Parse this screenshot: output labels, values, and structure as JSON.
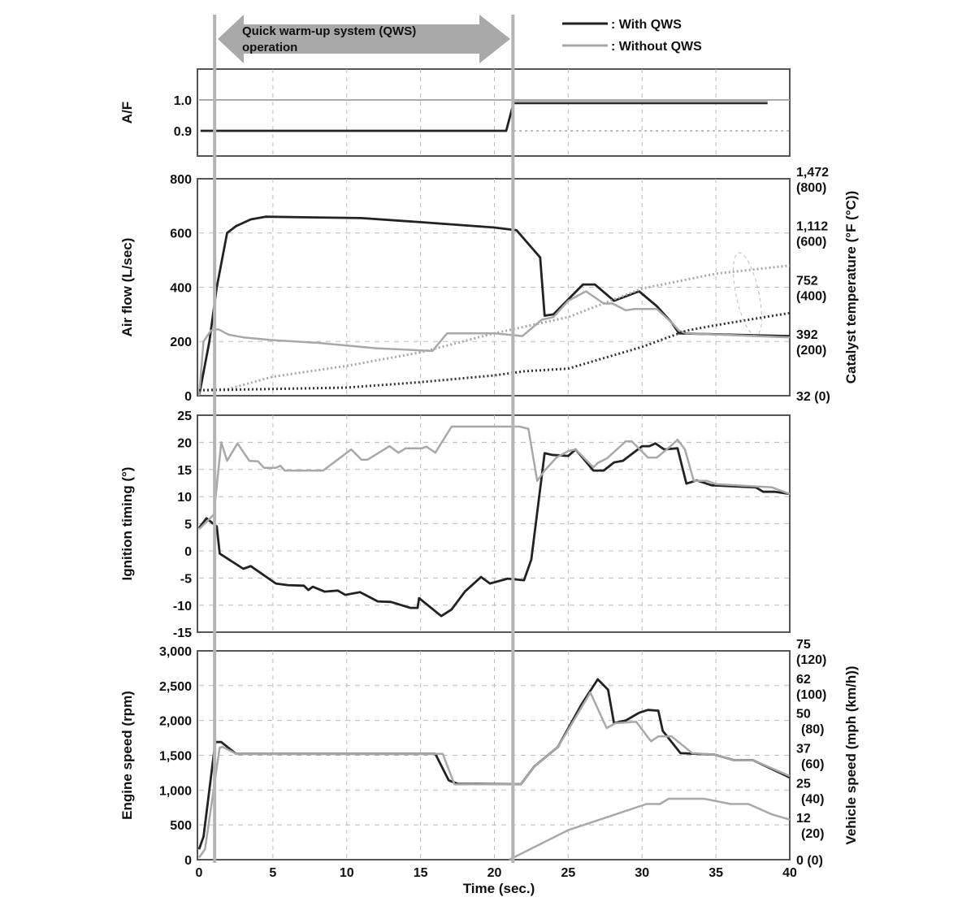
{
  "annotation": {
    "line1": "Quick warm-up system (QWS)",
    "line2": "operation"
  },
  "legend": [
    {
      "label": ": With QWS",
      "color": "#222222"
    },
    {
      "label": ": Without QWS",
      "color": "#a8a8a8"
    }
  ],
  "colors": {
    "with_qws": "#222222",
    "without_qws": "#a8a8a8",
    "catalyst_light": "#a8a8a8",
    "catalyst_dark": "#333333",
    "marker_band": "#b4b4b4"
  },
  "chart_data": [
    {
      "type": "line",
      "ylabel": "A/F",
      "yticks": [
        "0.9",
        "1.0"
      ],
      "ytick_values": [
        0.9,
        1.0
      ],
      "ylim": [
        0.87,
        1.1
      ],
      "xlim": [
        0,
        40
      ],
      "qws_operation_seconds": [
        1,
        21.2
      ],
      "series": [
        {
          "name": "With QWS",
          "x": [
            0.1,
            20.8,
            21.3,
            38.5
          ],
          "y": [
            0.9,
            0.9,
            0.99,
            0.99
          ]
        },
        {
          "name": "Without QWS",
          "x": [
            21.3,
            38.5
          ],
          "y": [
            0.995,
            0.995
          ]
        }
      ]
    },
    {
      "type": "line",
      "ylabel": "Air flow (L/sec)",
      "y2label": "Catalyst temperature (°F (°C))",
      "yticks": [
        "0",
        "200",
        "400",
        "600",
        "800"
      ],
      "ytick_values": [
        0,
        200,
        400,
        600,
        800
      ],
      "y2ticks": [
        {
          "f": "32 (0)",
          "c": "",
          "value": 0
        },
        {
          "f": "392",
          "c": "(200)",
          "value": 200
        },
        {
          "f": "752",
          "c": "(400)",
          "value": 400
        },
        {
          "f": "1,112",
          "c": "(600)",
          "value": 600
        },
        {
          "f": "1,472",
          "c": "(800)",
          "value": 800
        }
      ],
      "ylim": [
        0,
        800
      ],
      "xlim": [
        0,
        40
      ],
      "grid": true,
      "series": [
        {
          "name": "With QWS",
          "x": [
            0,
            0.7,
            1.2,
            1.9,
            2.5,
            3.5,
            4.5,
            11,
            15,
            20,
            21.5,
            23.1,
            23.4,
            24,
            26,
            26.8,
            28.1,
            29.8,
            31,
            32,
            32.5,
            36,
            40
          ],
          "y": [
            0,
            200,
            400,
            600,
            625,
            650,
            660,
            655,
            640,
            620,
            610,
            510,
            295,
            300,
            410,
            410,
            350,
            385,
            330,
            270,
            230,
            225,
            220
          ]
        },
        {
          "name": "Without QWS",
          "x": [
            0,
            0.3,
            0.8,
            1.3,
            2,
            3,
            5,
            8,
            10,
            12,
            15.8,
            16.8,
            20,
            21.9,
            23.2,
            24,
            25,
            26.2,
            27.4,
            28,
            28.9,
            29.5,
            31,
            32,
            32.5,
            33,
            40
          ],
          "y": [
            0,
            200,
            240,
            245,
            225,
            215,
            205,
            195,
            185,
            175,
            165,
            230,
            230,
            220,
            280,
            290,
            350,
            385,
            340,
            340,
            315,
            320,
            320,
            270,
            240,
            230,
            215
          ]
        },
        {
          "style": "dotted-light",
          "x": [
            0,
            2,
            5,
            10,
            15,
            20,
            25,
            30,
            35,
            40
          ],
          "y": [
            20,
            25,
            70,
            110,
            160,
            230,
            290,
            395,
            450,
            480
          ]
        },
        {
          "style": "dotted-dark",
          "x": [
            0,
            5,
            10,
            15,
            20,
            22,
            25,
            30,
            33,
            35,
            40
          ],
          "y": [
            20,
            25,
            30,
            50,
            75,
            90,
            100,
            180,
            240,
            260,
            305
          ]
        }
      ]
    },
    {
      "type": "line",
      "ylabel": "Ignition timing (°)",
      "yticks": [
        "-15",
        "-10",
        "-5",
        "0",
        "5",
        "10",
        "15",
        "20",
        "25"
      ],
      "ytick_values": [
        -15,
        -10,
        -5,
        0,
        5,
        10,
        15,
        20,
        25
      ],
      "ylim": [
        -15,
        25
      ],
      "xlim": [
        0,
        40
      ],
      "grid": true,
      "series": [
        {
          "name": "With QWS",
          "x": [
            0,
            0.5,
            1.2,
            1.4,
            3.0,
            3.5,
            5.2,
            6,
            7.1,
            7.4,
            7.7,
            8.5,
            9.4,
            9.9,
            10.9,
            12.1,
            13,
            14.3,
            14.8,
            14.9,
            16.4,
            17.1,
            18,
            19.1,
            19.7,
            20.9,
            22,
            22.5,
            23.4,
            23.9,
            25,
            25.5,
            26.7,
            27.4,
            28.1,
            28.7,
            30,
            30.5,
            30.9,
            31.5,
            32.4,
            33,
            33.7,
            34.7,
            37.7,
            38.2,
            39,
            40
          ],
          "y": [
            4.2,
            6,
            4.5,
            -0.5,
            -3.3,
            -2.8,
            -6,
            -6.3,
            -6.4,
            -7.2,
            -6.6,
            -7.5,
            -7.3,
            -8.1,
            -7.6,
            -9.3,
            -9.4,
            -10.5,
            -10.5,
            -8.7,
            -12,
            -10.8,
            -7.5,
            -4.8,
            -6,
            -5.1,
            -5.4,
            -1.6,
            18,
            17.7,
            17.5,
            18.7,
            14.8,
            14.8,
            16.3,
            16.6,
            19.3,
            19.3,
            19.8,
            18.7,
            18.9,
            12.4,
            13,
            12.1,
            11.7,
            10.9,
            10.9,
            10.5
          ]
        },
        {
          "name": "Without QWS",
          "x": [
            0,
            1,
            1.5,
            1.9,
            2.6,
            3.4,
            4,
            4.4,
            5.2,
            5.5,
            5.8,
            8.4,
            10.3,
            11,
            11.4,
            12.9,
            13.5,
            14,
            15.1,
            15.4,
            16,
            17.1,
            21.7,
            22.3,
            22.9,
            23.4,
            24.2,
            25,
            25.5,
            26.7,
            27,
            27.6,
            28.9,
            29.3,
            30.4,
            31,
            31.9,
            32.4,
            32.9,
            33.5,
            34.4,
            35,
            38.8,
            40
          ],
          "y": [
            4,
            6.7,
            20,
            16.6,
            19.8,
            16.6,
            16.5,
            15.3,
            15.3,
            15.7,
            14.8,
            14.8,
            18.7,
            16.8,
            16.8,
            19.3,
            18.1,
            18.9,
            18.9,
            19.2,
            18.1,
            22.9,
            22.9,
            22.5,
            12.9,
            14.8,
            17.2,
            18.4,
            18.7,
            15.4,
            16.2,
            17,
            20.2,
            20.2,
            17.2,
            17.2,
            19.2,
            20.5,
            18.7,
            12.9,
            12.9,
            12.3,
            11.7,
            10.5
          ]
        }
      ]
    },
    {
      "type": "line",
      "ylabel": "Engine speed (rpm)",
      "y2label": "Vehicle speed (mph (km/h))",
      "xlabel": "Time (sec.)",
      "xticks": [
        "0",
        "5",
        "10",
        "15",
        "20",
        "25",
        "30",
        "35",
        "40"
      ],
      "yticks": [
        "0",
        "500",
        "1,000",
        "1,500",
        "2,000",
        "2,500",
        "3,000"
      ],
      "ytick_values": [
        0,
        500,
        1000,
        1500,
        2000,
        2500,
        3000
      ],
      "y2ticks": [
        {
          "f": "0 (0)",
          "c": "",
          "value": 0
        },
        {
          "f": "12",
          "c": "(20)",
          "value": 20
        },
        {
          "f": "25",
          "c": "(40)",
          "value": 40
        },
        {
          "f": "37",
          "c": "(60)",
          "value": 60
        },
        {
          "f": "50",
          "c": "(80)",
          "value": 80
        },
        {
          "f": "62",
          "c": "(100)",
          "value": 100
        },
        {
          "f": "75",
          "c": "(120)",
          "value": 120
        }
      ],
      "ylim": [
        0,
        3000
      ],
      "y2lim_kmh": [
        0,
        120
      ],
      "xlim": [
        0,
        40
      ],
      "grid": true,
      "series": [
        {
          "name": "With QWS",
          "x": [
            0,
            0.3,
            1.1,
            1.5,
            2.5,
            16,
            16.9,
            17.5,
            21.8,
            22.7,
            24.3,
            25.9,
            27,
            27.7,
            28.1,
            28.9,
            29.8,
            30.4,
            31.1,
            31.4,
            32.6,
            34.9,
            36.2,
            37.5,
            40
          ],
          "y": [
            150,
            330,
            1690,
            1690,
            1520,
            1520,
            1140,
            1090,
            1085,
            1340,
            1620,
            2230,
            2590,
            2440,
            1960,
            2000,
            2110,
            2150,
            2140,
            1850,
            1530,
            1510,
            1430,
            1430,
            1180
          ]
        },
        {
          "name": "Without QWS",
          "x": [
            0,
            0.4,
            1.4,
            1.6,
            2.5,
            16.5,
            17.3,
            21.8,
            22.7,
            24.3,
            26.5,
            27.6,
            28.2,
            29.6,
            30.6,
            31.1,
            32,
            33.4,
            34.9,
            36.2,
            37.5,
            40
          ],
          "y": [
            30,
            150,
            1610,
            1620,
            1520,
            1520,
            1080,
            1085,
            1340,
            1620,
            2400,
            1890,
            1960,
            1980,
            1700,
            1770,
            1770,
            1530,
            1510,
            1430,
            1430,
            1200
          ]
        },
        {
          "name": "Without QWS",
          "axis": "vehicle_speed_kmh",
          "x": [
            21,
            25,
            30.3,
            31.2,
            31.8,
            34.2,
            36,
            37.2,
            38.8,
            40
          ],
          "y": [
            0,
            17,
            32,
            32,
            35,
            35,
            32,
            32,
            26,
            23
          ]
        }
      ]
    }
  ]
}
